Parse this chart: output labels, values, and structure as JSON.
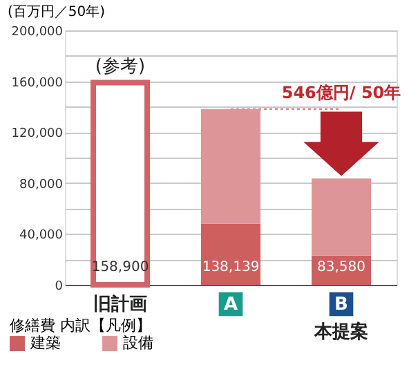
{
  "chart_data": {
    "type": "bar",
    "stacked": true,
    "ylabel": "(百万円／50年)",
    "legend_title": "修繕費 内訳【凡例】",
    "legend": "bottom left",
    "categories": [
      "旧計画",
      "A",
      "B"
    ],
    "series": [
      {
        "color": "#d06468",
        "values": [
          158900,
          null,
          null
        ]
      },
      {
        "name": "建築",
        "color": "#cd5f5f",
        "values": [
          null,
          48000,
          23000
        ]
      },
      {
        "name": "設備",
        "color": "#dd9597",
        "values": [
          null,
          90139,
          60580
        ]
      }
    ],
    "totals": [
      "158,900",
      "138,139",
      "83,580"
    ],
    "ylim": [
      0,
      200000
    ],
    "yticks": [
      0,
      {
        "value": 20000,
        "label": null
      },
      {
        "value": 40000,
        "label": "40,000"
      },
      {
        "value": 60000,
        "label": null
      },
      {
        "value": 80000,
        "label": "80,000"
      },
      {
        "value": 100000,
        "label": null
      },
      {
        "value": 120000,
        "label": "120,000"
      },
      {
        "value": 140000,
        "label": null
      },
      {
        "value": 160000,
        "label": "160,000"
      },
      {
        "value": 180000,
        "label": null
      },
      {
        "value": 200000,
        "label": "200,000"
      }
    ],
    "grid": "y",
    "ref_lines": [
      {
        "axis": "y",
        "value": 138139,
        "color": "#d06468",
        "line_style": "dotted"
      }
    ],
    "annotations": [
      "(参考)",
      "546億円/ 50年",
      "本提案"
    ]
  }
}
